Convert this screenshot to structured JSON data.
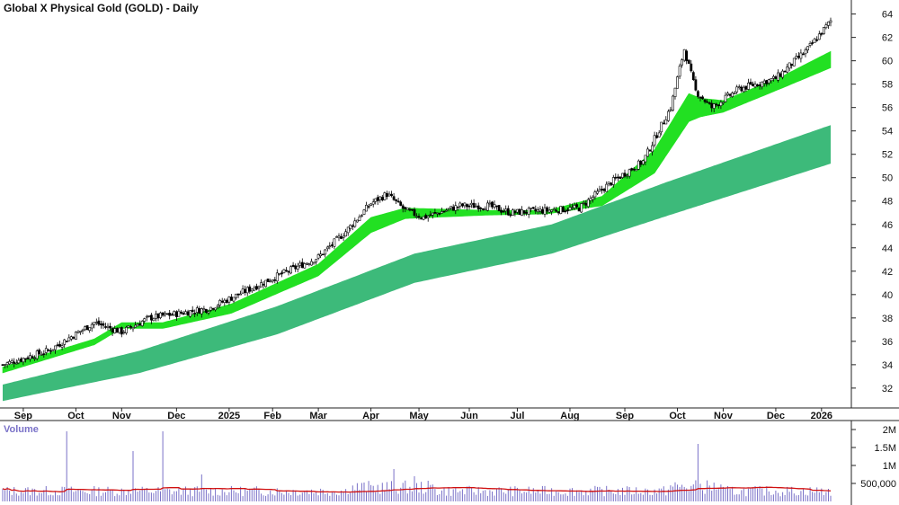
{
  "chart_data": [
    {
      "type": "candlestick",
      "title": "Global X Physical Gold (GOLD) - Daily",
      "y_ticks": [
        32,
        34,
        36,
        38,
        40,
        42,
        44,
        46,
        48,
        50,
        52,
        54,
        56,
        58,
        60,
        62,
        64
      ],
      "ylim": [
        30.3,
        65.2
      ],
      "x_ticks": [
        "Sep",
        "Oct",
        "Nov",
        "Dec",
        "2025",
        "Feb",
        "Mar",
        "Apr",
        "May",
        "Jun",
        "Jul",
        "Aug",
        "Sep",
        "Oct",
        "Nov",
        "Dec",
        "2026"
      ],
      "x_tick_index": [
        9,
        32,
        52,
        76,
        99,
        118,
        138,
        161,
        182,
        204,
        225,
        248,
        272,
        295,
        315,
        338,
        358
      ],
      "close_anchors": [
        [
          0,
          34.0
        ],
        [
          20,
          35.2
        ],
        [
          40,
          37.6
        ],
        [
          52,
          36.8
        ],
        [
          64,
          38.0
        ],
        [
          90,
          38.8
        ],
        [
          118,
          41.4
        ],
        [
          138,
          43.2
        ],
        [
          150,
          45.4
        ],
        [
          161,
          47.8
        ],
        [
          168,
          48.6
        ],
        [
          176,
          47.2
        ],
        [
          184,
          46.6
        ],
        [
          200,
          47.6
        ],
        [
          212,
          47.6
        ],
        [
          222,
          47.0
        ],
        [
          238,
          47.2
        ],
        [
          252,
          47.4
        ],
        [
          266,
          49.6
        ],
        [
          280,
          51.4
        ],
        [
          292,
          56.0
        ],
        [
          298,
          61.0
        ],
        [
          303,
          57.4
        ],
        [
          310,
          56.0
        ],
        [
          322,
          57.6
        ],
        [
          338,
          58.5
        ],
        [
          352,
          61.0
        ],
        [
          362,
          63.4
        ]
      ],
      "short_band_upper": [
        [
          0,
          33.8
        ],
        [
          40,
          36.2
        ],
        [
          52,
          37.6
        ],
        [
          70,
          37.6
        ],
        [
          100,
          39.2
        ],
        [
          138,
          42.6
        ],
        [
          161,
          46.6
        ],
        [
          176,
          47.4
        ],
        [
          212,
          47.2
        ],
        [
          238,
          47.2
        ],
        [
          262,
          48.4
        ],
        [
          285,
          52.4
        ],
        [
          300,
          57.2
        ],
        [
          305,
          56.8
        ],
        [
          315,
          56.6
        ],
        [
          340,
          58.6
        ],
        [
          362,
          60.8
        ]
      ],
      "short_band_lower": [
        [
          0,
          33.3
        ],
        [
          40,
          35.7
        ],
        [
          52,
          37.1
        ],
        [
          70,
          37.1
        ],
        [
          100,
          38.4
        ],
        [
          138,
          41.6
        ],
        [
          161,
          45.3
        ],
        [
          176,
          46.5
        ],
        [
          212,
          46.8
        ],
        [
          238,
          46.9
        ],
        [
          262,
          47.6
        ],
        [
          285,
          50.4
        ],
        [
          300,
          54.8
        ],
        [
          305,
          55.2
        ],
        [
          315,
          55.6
        ],
        [
          340,
          57.6
        ],
        [
          362,
          59.4
        ]
      ],
      "long_band_upper": [
        [
          0,
          32.3
        ],
        [
          60,
          35.2
        ],
        [
          120,
          39.0
        ],
        [
          180,
          43.5
        ],
        [
          240,
          46.0
        ],
        [
          290,
          49.6
        ],
        [
          362,
          54.5
        ]
      ],
      "long_band_lower": [
        [
          0,
          30.9
        ],
        [
          60,
          33.3
        ],
        [
          120,
          36.6
        ],
        [
          180,
          41.0
        ],
        [
          240,
          43.5
        ],
        [
          290,
          46.7
        ],
        [
          362,
          51.2
        ]
      ],
      "short_band_colors": {
        "up": "#22e022",
        "down": "#ff7a1e"
      },
      "long_band_color": "#3dba7a",
      "grid": false
    },
    {
      "type": "bar",
      "title": "Volume",
      "y_ticks": [
        500000,
        1000000,
        1500000,
        2000000
      ],
      "y_tick_labels": [
        "500,000",
        "1M",
        "1.5M",
        "2M"
      ],
      "ylim": [
        0,
        2250000
      ],
      "average_line_color": "#d01010",
      "bar_color": "#7a72c8",
      "spikes": [
        [
          28,
          1950000
        ],
        [
          57,
          1400000
        ],
        [
          70,
          1950000
        ],
        [
          87,
          750000
        ],
        [
          171,
          900000
        ],
        [
          180,
          700000
        ],
        [
          304,
          1600000
        ]
      ],
      "baseline_volume": 320000
    }
  ]
}
